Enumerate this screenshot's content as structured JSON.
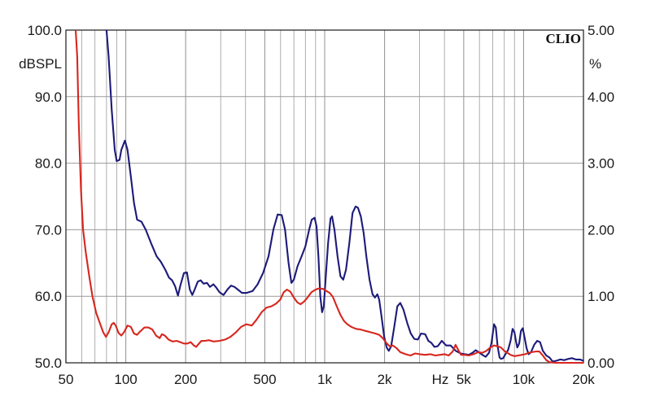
{
  "chart_data": {
    "type": "line",
    "brand_label": "CLIO",
    "x_axis": {
      "scale": "log",
      "range": [
        50,
        20000
      ],
      "ticks": [
        {
          "value": 50,
          "label": "50"
        },
        {
          "value": 100,
          "label": "100"
        },
        {
          "value": 200,
          "label": "200"
        },
        {
          "value": 500,
          "label": "500"
        },
        {
          "value": 1000,
          "label": "1k"
        },
        {
          "value": 2000,
          "label": "2k"
        },
        {
          "value": 5000,
          "label": "5k"
        },
        {
          "value": 10000,
          "label": "10k"
        },
        {
          "value": 20000,
          "label": "20k"
        }
      ],
      "unit_label": "Hz"
    },
    "y_left": {
      "unit_label": "dBSPL",
      "range": [
        50,
        100
      ],
      "ticks": [
        {
          "value": 100,
          "label": "100.0"
        },
        {
          "value": 90,
          "label": "90.0"
        },
        {
          "value": 80,
          "label": "80.0"
        },
        {
          "value": 70,
          "label": "70.0"
        },
        {
          "value": 60,
          "label": "60.0"
        },
        {
          "value": 50,
          "label": "50.0"
        }
      ]
    },
    "y_right": {
      "unit_label": "%",
      "range": [
        0,
        5
      ],
      "ticks": [
        {
          "value": 5,
          "label": "5.00"
        },
        {
          "value": 4,
          "label": "4.00"
        },
        {
          "value": 3,
          "label": "3.00"
        },
        {
          "value": 2,
          "label": "2.00"
        },
        {
          "value": 1,
          "label": "1.00"
        },
        {
          "value": 0,
          "label": "0.00"
        }
      ]
    },
    "grid": true,
    "series": [
      {
        "color": "#1c1a7a",
        "axis": "y_left",
        "points": [
          [
            80,
            100
          ],
          [
            82,
            96
          ],
          [
            85,
            88
          ],
          [
            88,
            82
          ],
          [
            90,
            80.3
          ],
          [
            93,
            80.5
          ],
          [
            95,
            82
          ],
          [
            99,
            83.4
          ],
          [
            102,
            82
          ],
          [
            106,
            78
          ],
          [
            110,
            74
          ],
          [
            114,
            71.5
          ],
          [
            120,
            71.2
          ],
          [
            126,
            70
          ],
          [
            134,
            68
          ],
          [
            143,
            66
          ],
          [
            150,
            65.2
          ],
          [
            158,
            64
          ],
          [
            165,
            62.8
          ],
          [
            171,
            62.4
          ],
          [
            177,
            61.5
          ],
          [
            183,
            60.1
          ],
          [
            188,
            61.6
          ],
          [
            196,
            63.5
          ],
          [
            203,
            63.6
          ],
          [
            210,
            61
          ],
          [
            216,
            60.2
          ],
          [
            222,
            61
          ],
          [
            230,
            62.2
          ],
          [
            238,
            62.4
          ],
          [
            246,
            61.9
          ],
          [
            256,
            62
          ],
          [
            265,
            61.4
          ],
          [
            276,
            61.8
          ],
          [
            285,
            61.3
          ],
          [
            296,
            60.6
          ],
          [
            310,
            60.2
          ],
          [
            324,
            61
          ],
          [
            338,
            61.6
          ],
          [
            352,
            61.4
          ],
          [
            366,
            61
          ],
          [
            384,
            60.5
          ],
          [
            404,
            60.5
          ],
          [
            434,
            60.8
          ],
          [
            460,
            61.8
          ],
          [
            490,
            63.5
          ],
          [
            522,
            66
          ],
          [
            552,
            70
          ],
          [
            580,
            72.3
          ],
          [
            608,
            72.2
          ],
          [
            632,
            70
          ],
          [
            658,
            65
          ],
          [
            680,
            62
          ],
          [
            700,
            62.5
          ],
          [
            730,
            64.5
          ],
          [
            765,
            66
          ],
          [
            800,
            67.5
          ],
          [
            835,
            70
          ],
          [
            860,
            71.5
          ],
          [
            890,
            71.8
          ],
          [
            910,
            70.5
          ],
          [
            930,
            66
          ],
          [
            950,
            60
          ],
          [
            970,
            57.6
          ],
          [
            990,
            58.5
          ],
          [
            1010,
            62.5
          ],
          [
            1040,
            68
          ],
          [
            1070,
            71.7
          ],
          [
            1090,
            72
          ],
          [
            1120,
            70
          ],
          [
            1160,
            66
          ],
          [
            1200,
            63
          ],
          [
            1240,
            62.5
          ],
          [
            1280,
            64
          ],
          [
            1330,
            68
          ],
          [
            1380,
            72.5
          ],
          [
            1430,
            73.5
          ],
          [
            1470,
            73.3
          ],
          [
            1520,
            72
          ],
          [
            1570,
            69.5
          ],
          [
            1620,
            66
          ],
          [
            1680,
            62.5
          ],
          [
            1740,
            60.3
          ],
          [
            1790,
            59.8
          ],
          [
            1840,
            60.3
          ],
          [
            1880,
            59.5
          ],
          [
            1930,
            57
          ],
          [
            1990,
            54
          ],
          [
            2050,
            52.3
          ],
          [
            2100,
            51.8
          ],
          [
            2160,
            52.5
          ],
          [
            2240,
            55.5
          ],
          [
            2320,
            58.5
          ],
          [
            2400,
            59
          ],
          [
            2490,
            58
          ],
          [
            2600,
            56
          ],
          [
            2710,
            54.4
          ],
          [
            2820,
            53.6
          ],
          [
            2940,
            53.5
          ],
          [
            3050,
            54.4
          ],
          [
            3200,
            54.3
          ],
          [
            3320,
            53.3
          ],
          [
            3440,
            53
          ],
          [
            3560,
            52.4
          ],
          [
            3700,
            52.5
          ],
          [
            3880,
            53.3
          ],
          [
            4080,
            52.6
          ],
          [
            4300,
            52.6
          ],
          [
            4560,
            51.8
          ],
          [
            4830,
            51.4
          ],
          [
            5060,
            51.3
          ],
          [
            5300,
            51.2
          ],
          [
            5540,
            51.5
          ],
          [
            5740,
            51.9
          ],
          [
            5950,
            51.6
          ],
          [
            6200,
            51.2
          ],
          [
            6450,
            50.9
          ],
          [
            6700,
            51.5
          ],
          [
            6900,
            53
          ],
          [
            7100,
            55.8
          ],
          [
            7250,
            55.3
          ],
          [
            7400,
            52.5
          ],
          [
            7570,
            50.8
          ],
          [
            7700,
            50.6
          ],
          [
            7900,
            50.7
          ],
          [
            8100,
            51.3
          ],
          [
            8350,
            51.9
          ],
          [
            8600,
            53.3
          ],
          [
            8800,
            55.1
          ],
          [
            9000,
            54.6
          ],
          [
            9150,
            53.3
          ],
          [
            9300,
            52.3
          ],
          [
            9500,
            52.9
          ],
          [
            9700,
            54.8
          ],
          [
            9900,
            55.2
          ],
          [
            10100,
            53.9
          ],
          [
            10350,
            52.2
          ],
          [
            10600,
            51.3
          ],
          [
            10900,
            51.6
          ],
          [
            11300,
            52.7
          ],
          [
            11700,
            53.3
          ],
          [
            12100,
            53.1
          ],
          [
            12500,
            51.8
          ],
          [
            13000,
            51.1
          ],
          [
            13500,
            50.8
          ],
          [
            14000,
            50.2
          ],
          [
            14600,
            50.3
          ],
          [
            15300,
            50.5
          ],
          [
            16000,
            50.4
          ],
          [
            16800,
            50.6
          ],
          [
            17500,
            50.7
          ],
          [
            18300,
            50.5
          ],
          [
            19200,
            50.5
          ],
          [
            20000,
            50.3
          ]
        ]
      },
      {
        "color": "#d7261e",
        "axis": "y_left",
        "points": [
          [
            56,
            100
          ],
          [
            57,
            96
          ],
          [
            58,
            86
          ],
          [
            59.5,
            76
          ],
          [
            61,
            70
          ],
          [
            63,
            66.5
          ],
          [
            65.5,
            63
          ],
          [
            68,
            60
          ],
          [
            71,
            57.5
          ],
          [
            74,
            56
          ],
          [
            77,
            54.6
          ],
          [
            79.5,
            53.9
          ],
          [
            82,
            54.6
          ],
          [
            85,
            55.8
          ],
          [
            87,
            56
          ],
          [
            89,
            55.6
          ],
          [
            92,
            54.5
          ],
          [
            95,
            54.1
          ],
          [
            98,
            54.6
          ],
          [
            102,
            55.6
          ],
          [
            106,
            55.4
          ],
          [
            110,
            54.4
          ],
          [
            114,
            54.2
          ],
          [
            118,
            54.7
          ],
          [
            124,
            55.3
          ],
          [
            130,
            55.3
          ],
          [
            136,
            55
          ],
          [
            142,
            54.1
          ],
          [
            148,
            53.7
          ],
          [
            152,
            54.3
          ],
          [
            157,
            54.1
          ],
          [
            164,
            53.5
          ],
          [
            172,
            53.2
          ],
          [
            180,
            53.3
          ],
          [
            188,
            53.1
          ],
          [
            196,
            52.9
          ],
          [
            204,
            52.9
          ],
          [
            212,
            53.1
          ],
          [
            220,
            52.6
          ],
          [
            226,
            52.4
          ],
          [
            232,
            52.8
          ],
          [
            240,
            53.3
          ],
          [
            250,
            53.3
          ],
          [
            262,
            53.4
          ],
          [
            276,
            53.2
          ],
          [
            296,
            53.3
          ],
          [
            316,
            53.5
          ],
          [
            336,
            53.9
          ],
          [
            358,
            54.6
          ],
          [
            380,
            55.4
          ],
          [
            404,
            55.8
          ],
          [
            430,
            55.6
          ],
          [
            455,
            56.5
          ],
          [
            482,
            57.6
          ],
          [
            510,
            58.3
          ],
          [
            540,
            58.5
          ],
          [
            570,
            58.9
          ],
          [
            598,
            59.5
          ],
          [
            622,
            60.6
          ],
          [
            646,
            61
          ],
          [
            672,
            60.7
          ],
          [
            700,
            59.8
          ],
          [
            728,
            59.1
          ],
          [
            756,
            58.8
          ],
          [
            788,
            59.2
          ],
          [
            820,
            59.8
          ],
          [
            858,
            60.6
          ],
          [
            900,
            61
          ],
          [
            940,
            61.2
          ],
          [
            980,
            61.1
          ],
          [
            1020,
            60.8
          ],
          [
            1060,
            60.5
          ],
          [
            1100,
            59.9
          ],
          [
            1150,
            58.5
          ],
          [
            1200,
            57.2
          ],
          [
            1250,
            56.3
          ],
          [
            1300,
            55.8
          ],
          [
            1360,
            55.4
          ],
          [
            1440,
            55.1
          ],
          [
            1520,
            55
          ],
          [
            1600,
            54.8
          ],
          [
            1700,
            54.6
          ],
          [
            1800,
            54.4
          ],
          [
            1880,
            54.2
          ],
          [
            1960,
            53.7
          ],
          [
            2040,
            53
          ],
          [
            2120,
            52.5
          ],
          [
            2200,
            52.6
          ],
          [
            2300,
            52.2
          ],
          [
            2400,
            51.6
          ],
          [
            2550,
            51.3
          ],
          [
            2700,
            51.1
          ],
          [
            2850,
            51.4
          ],
          [
            3000,
            51.3
          ],
          [
            3200,
            51.2
          ],
          [
            3400,
            51.3
          ],
          [
            3600,
            51.1
          ],
          [
            3800,
            51.2
          ],
          [
            4000,
            51.3
          ],
          [
            4200,
            51.1
          ],
          [
            4400,
            51.7
          ],
          [
            4550,
            52.7
          ],
          [
            4700,
            51.9
          ],
          [
            4850,
            51.2
          ],
          [
            5050,
            51.2
          ],
          [
            5300,
            51.1
          ],
          [
            5600,
            51.3
          ],
          [
            5900,
            51.6
          ],
          [
            6200,
            51.5
          ],
          [
            6500,
            51.8
          ],
          [
            6800,
            52.3
          ],
          [
            7100,
            52.6
          ],
          [
            7400,
            52.5
          ],
          [
            7700,
            52.3
          ],
          [
            8000,
            51.8
          ],
          [
            8300,
            51.5
          ],
          [
            8600,
            51.2
          ],
          [
            9000,
            51
          ],
          [
            9400,
            51.1
          ],
          [
            9800,
            51.2
          ],
          [
            10200,
            51.3
          ],
          [
            10600,
            51.5
          ],
          [
            11000,
            51.6
          ],
          [
            11500,
            51.7
          ],
          [
            12000,
            51.7
          ],
          [
            12500,
            51.1
          ],
          [
            13000,
            50.4
          ],
          [
            13500,
            50.1
          ],
          [
            14500,
            50
          ],
          [
            16000,
            50
          ],
          [
            20000,
            50
          ]
        ]
      }
    ]
  }
}
